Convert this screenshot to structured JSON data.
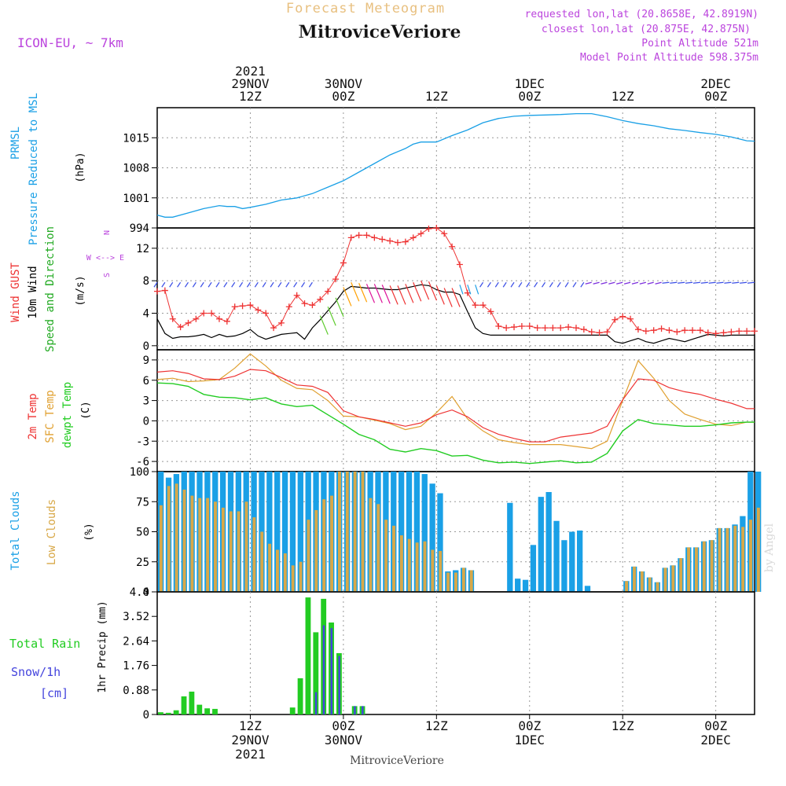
{
  "header": {
    "product": "Forecast Meteogram",
    "location": "MitroviceVeriore",
    "model": "ICON-EU, ~ 7km",
    "requested": "requested lon,lat (20.8658E, 42.8919N)",
    "closest": "closest lon,lat (20.875E, 42.875N)",
    "point_altitude": "Point Altitude 521m",
    "model_altitude": "Model Point Altitude 598.375m",
    "footer_location": "MitroviceVeriore",
    "watermark": "by Angel"
  },
  "time_axis": {
    "top_labels": [
      {
        "hour": 12,
        "lines": [
          "2021",
          "29NOV",
          "12Z"
        ]
      },
      {
        "hour": 24,
        "lines": [
          "30NOV",
          "00Z"
        ]
      },
      {
        "hour": 36,
        "lines": [
          "12Z"
        ]
      },
      {
        "hour": 48,
        "lines": [
          "1DEC",
          "00Z"
        ]
      },
      {
        "hour": 60,
        "lines": [
          "12Z"
        ]
      },
      {
        "hour": 72,
        "lines": [
          "2DEC",
          "00Z"
        ]
      }
    ],
    "bottom_labels": [
      {
        "hour": 12,
        "lines": [
          "12Z",
          "29NOV",
          "2021"
        ]
      },
      {
        "hour": 24,
        "lines": [
          "00Z",
          "30NOV"
        ]
      },
      {
        "hour": 36,
        "lines": [
          "12Z"
        ]
      },
      {
        "hour": 48,
        "lines": [
          "00Z",
          "1DEC"
        ]
      },
      {
        "hour": 60,
        "lines": [
          "12Z"
        ]
      },
      {
        "hour": 72,
        "lines": [
          "00Z",
          "2DEC"
        ]
      }
    ],
    "range_hours": [
      0,
      77
    ]
  },
  "colors": {
    "pressure": "#1aa0e6",
    "gust": "#ee3333",
    "wind": "#000000",
    "temp": "#ee3333",
    "sfc_temp": "#e0a030",
    "dewpt": "#22cc22",
    "total_clouds": "#1aa0e6",
    "low_clouds": "#d8a848",
    "rain": "#22cc22",
    "snow": "#4444dd",
    "title": "#e8c080",
    "info": "#bb44dd"
  },
  "panels": {
    "pressure": {
      "label_lines": [
        "PRMSL",
        "Pressure Reduced to MSL"
      ],
      "unit": "(hPa)",
      "ticks": [
        "994",
        "1001",
        "1008",
        "1015"
      ]
    },
    "wind": {
      "label_lines": [
        "Wind GUST",
        "10m Wind",
        "Speed and Direction"
      ],
      "unit": "(m/s)",
      "ticks": [
        "0",
        "4",
        "8",
        "12"
      ],
      "compass": [
        "N",
        "W <--> E",
        "S"
      ]
    },
    "temperature": {
      "label_lines": [
        "2m Temp",
        "SFC Temp",
        "dewpt Temp"
      ],
      "unit": "(C)",
      "ticks": [
        "-6",
        "-3",
        "0",
        "3",
        "6",
        "9"
      ]
    },
    "clouds": {
      "label_lines": [
        "Total Clouds",
        "Low Clouds"
      ],
      "unit": "(%)",
      "ticks": [
        "0",
        "25",
        "50",
        "75",
        "100"
      ]
    },
    "precip": {
      "label_lines": [
        "Total  Rain",
        "Snow/1h",
        "[cm]"
      ],
      "unit": "1hr Precip (mm)",
      "ticks": [
        "0",
        "0.88",
        "1.76",
        "2.64",
        "3.52",
        "4.4"
      ]
    }
  },
  "chart_data": [
    {
      "type": "line",
      "title": "PRMSL Pressure Reduced to MSL",
      "ylabel": "(hPa)",
      "ylim": [
        994,
        1022
      ],
      "x": [
        0,
        1,
        2,
        4,
        6,
        8,
        9,
        10,
        11,
        12,
        14,
        16,
        18,
        20,
        22,
        24,
        26,
        28,
        30,
        32,
        33,
        34,
        35,
        36,
        38,
        40,
        42,
        44,
        46,
        48,
        50,
        52,
        54,
        56,
        58,
        60,
        62,
        64,
        66,
        68,
        70,
        72,
        74,
        76,
        77
      ],
      "series": [
        {
          "name": "PRMSL",
          "values": [
            997,
            996.5,
            996.5,
            997.5,
            998.5,
            999.2,
            999,
            999,
            998.5,
            998.8,
            999.5,
            1000.5,
            1001,
            1002,
            1003.5,
            1005,
            1007,
            1009,
            1011,
            1012.5,
            1013.5,
            1014,
            1014,
            1014,
            1015.5,
            1016.8,
            1018.5,
            1019.5,
            1020,
            1020.2,
            1020.3,
            1020.4,
            1020.6,
            1020.6,
            1019.9,
            1019,
            1018.3,
            1017.8,
            1017.1,
            1016.7,
            1016.2,
            1015.8,
            1015.2,
            1014.3,
            1014.2
          ]
        }
      ]
    },
    {
      "type": "line",
      "title": "Wind GUST / 10m Wind Speed and Direction",
      "ylabel": "(m/s)",
      "ylim": [
        -0.5,
        14.5
      ],
      "x": [
        0,
        1,
        2,
        3,
        4,
        5,
        6,
        7,
        8,
        9,
        10,
        11,
        12,
        13,
        14,
        15,
        16,
        17,
        18,
        19,
        20,
        21,
        22,
        23,
        24,
        25,
        26,
        27,
        28,
        29,
        30,
        31,
        32,
        33,
        34,
        35,
        36,
        37,
        38,
        39,
        40,
        41,
        42,
        43,
        44,
        45,
        46,
        47,
        48,
        49,
        50,
        51,
        52,
        53,
        54,
        55,
        56,
        57,
        58,
        59,
        60,
        61,
        62,
        63,
        64,
        65,
        66,
        67,
        68,
        69,
        70,
        71,
        72,
        73,
        74,
        75,
        76,
        77
      ],
      "series": [
        {
          "name": "Wind GUST",
          "values": [
            6.7,
            6.8,
            3.3,
            2.3,
            2.8,
            3.3,
            4.0,
            4.0,
            3.3,
            3.0,
            4.8,
            4.9,
            5.0,
            4.4,
            4.0,
            2.2,
            2.8,
            4.8,
            6.2,
            5.2,
            5.0,
            5.7,
            6.7,
            8.2,
            10.2,
            13.3,
            13.6,
            13.6,
            13.3,
            13.1,
            12.9,
            12.7,
            12.8,
            13.3,
            13.8,
            14.4,
            14.5,
            13.8,
            12.2,
            10.0,
            6.5,
            5.0,
            5.0,
            4.2,
            2.4,
            2.2,
            2.3,
            2.4,
            2.4,
            2.2,
            2.2,
            2.2,
            2.2,
            2.3,
            2.2,
            2.0,
            1.7,
            1.6,
            1.7,
            3.2,
            3.6,
            3.3,
            2.0,
            1.8,
            1.9,
            2.1,
            1.9,
            1.7,
            1.9,
            1.9,
            1.9,
            1.6,
            1.5,
            1.6,
            1.7,
            1.8,
            1.8,
            1.8
          ]
        },
        {
          "name": "10m Wind",
          "values": [
            3.3,
            1.5,
            0.9,
            1.1,
            1.1,
            1.2,
            1.4,
            1.0,
            1.4,
            1.1,
            1.2,
            1.5,
            2.0,
            1.2,
            0.8,
            1.1,
            1.4,
            1.5,
            1.6,
            0.8,
            2.2,
            3.2,
            4.3,
            5.4,
            6.7,
            7.3,
            7.2,
            7.1,
            7.1,
            7.0,
            6.9,
            6.9,
            7.1,
            7.3,
            7.5,
            7.4,
            6.9,
            6.6,
            6.6,
            6.3,
            4.2,
            2.2,
            1.5,
            1.3,
            1.3,
            1.3,
            1.3,
            1.3,
            1.3,
            1.3,
            1.3,
            1.3,
            1.3,
            1.3,
            1.3,
            1.3,
            1.3,
            1.3,
            1.3,
            0.5,
            0.3,
            0.6,
            0.9,
            0.5,
            0.3,
            0.6,
            0.9,
            0.7,
            0.5,
            0.8,
            1.1,
            1.4,
            1.3,
            1.2,
            1.3,
            1.3,
            1.3,
            1.3
          ]
        }
      ]
    },
    {
      "type": "line",
      "title": "2m Temp / SFC Temp / dewpt Temp",
      "ylabel": "(C)",
      "ylim": [
        -7.5,
        10.5
      ],
      "x": [
        0,
        2,
        4,
        6,
        8,
        10,
        12,
        14,
        16,
        18,
        20,
        22,
        24,
        26,
        28,
        30,
        32,
        34,
        36,
        38,
        40,
        42,
        44,
        46,
        48,
        50,
        52,
        54,
        56,
        58,
        60,
        62,
        64,
        66,
        68,
        70,
        72,
        74,
        76,
        77
      ],
      "series": [
        {
          "name": "2m Temp",
          "values": [
            7.2,
            7.4,
            7.0,
            6.2,
            6.1,
            6.6,
            7.6,
            7.4,
            6.4,
            5.3,
            5.1,
            4.2,
            1.5,
            0.6,
            0.2,
            -0.3,
            -0.8,
            -0.3,
            0.9,
            1.6,
            0.6,
            -1.0,
            -2.0,
            -2.6,
            -3.1,
            -3.1,
            -2.4,
            -2.1,
            -1.8,
            -0.8,
            3.1,
            6.2,
            6.0,
            4.9,
            4.3,
            3.9,
            3.2,
            2.6,
            1.8,
            1.8
          ]
        },
        {
          "name": "SFC Temp",
          "values": [
            6.1,
            6.3,
            5.8,
            5.9,
            6.1,
            7.8,
            9.9,
            8.1,
            6.0,
            4.8,
            4.6,
            3.0,
            0.7,
            0.6,
            0.1,
            -0.4,
            -1.3,
            -0.8,
            1.2,
            3.6,
            0.3,
            -1.5,
            -2.8,
            -3.2,
            -3.5,
            -3.5,
            -3.5,
            -3.8,
            -4.1,
            -3.0,
            3.0,
            8.9,
            6.3,
            3.0,
            1.0,
            0.2,
            -0.5,
            -0.7,
            -0.2,
            -0.2
          ]
        },
        {
          "name": "dewpt Temp",
          "values": [
            5.6,
            5.5,
            5.1,
            3.9,
            3.5,
            3.4,
            3.1,
            3.4,
            2.5,
            2.1,
            2.3,
            0.9,
            -0.5,
            -2.0,
            -2.8,
            -4.2,
            -4.6,
            -4.1,
            -4.4,
            -5.2,
            -5.1,
            -5.8,
            -6.2,
            -6.1,
            -6.3,
            -6.1,
            -5.9,
            -6.2,
            -6.1,
            -4.8,
            -1.5,
            0.2,
            -0.4,
            -0.6,
            -0.8,
            -0.8,
            -0.6,
            -0.3,
            -0.2,
            -0.2
          ]
        }
      ]
    },
    {
      "type": "bar",
      "title": "Total Clouds / Low Clouds",
      "ylabel": "(%)",
      "ylim": [
        0,
        100
      ],
      "x": [
        0,
        1,
        2,
        3,
        4,
        5,
        6,
        7,
        8,
        9,
        10,
        11,
        12,
        13,
        14,
        15,
        16,
        17,
        18,
        19,
        20,
        21,
        22,
        23,
        24,
        25,
        26,
        27,
        28,
        29,
        30,
        31,
        32,
        33,
        34,
        35,
        36,
        37,
        38,
        39,
        40,
        41,
        42,
        43,
        44,
        45,
        46,
        47,
        48,
        49,
        50,
        51,
        52,
        53,
        54,
        55,
        56,
        57,
        58,
        59,
        60,
        61,
        62,
        63,
        64,
        65,
        66,
        67,
        68,
        69,
        70,
        71,
        72,
        73,
        74,
        75,
        76,
        77
      ],
      "series": [
        {
          "name": "Total Clouds",
          "values": [
            100,
            95,
            98,
            100,
            100,
            100,
            100,
            100,
            100,
            100,
            100,
            100,
            100,
            100,
            100,
            100,
            100,
            100,
            100,
            100,
            100,
            100,
            100,
            100,
            100,
            100,
            100,
            100,
            100,
            100,
            100,
            100,
            100,
            100,
            98,
            90,
            82,
            17,
            18,
            20,
            18,
            0,
            0,
            0,
            0,
            74,
            11,
            10,
            39,
            79,
            83,
            59,
            43,
            50,
            51,
            5,
            0,
            0,
            0,
            0,
            9,
            21,
            17,
            12,
            8,
            20,
            22,
            28,
            37,
            37,
            42,
            43,
            53,
            53,
            56,
            63,
            100,
            100
          ]
        },
        {
          "name": "Low Clouds",
          "values": [
            72,
            88,
            90,
            85,
            80,
            78,
            78,
            75,
            70,
            67,
            67,
            75,
            62,
            50,
            40,
            35,
            32,
            22,
            25,
            60,
            68,
            77,
            80,
            100,
            100,
            100,
            100,
            78,
            73,
            60,
            55,
            47,
            44,
            41,
            42,
            35,
            34,
            16,
            16,
            20,
            18,
            0,
            0,
            0,
            0,
            0,
            0,
            0,
            0,
            0,
            0,
            0,
            0,
            0,
            0,
            0,
            0,
            0,
            0,
            0,
            9,
            21,
            17,
            12,
            8,
            20,
            22,
            28,
            37,
            37,
            42,
            43,
            53,
            53,
            55,
            54,
            60,
            70
          ]
        }
      ]
    },
    {
      "type": "bar",
      "title": "Total Rain / Snow/1h",
      "ylabel": "1hr Precip (mm)",
      "ylim": [
        0,
        4.4
      ],
      "x": [
        0,
        1,
        2,
        3,
        4,
        5,
        6,
        7,
        8,
        9,
        10,
        11,
        12,
        13,
        14,
        15,
        16,
        17,
        18,
        19,
        20,
        21,
        22,
        23,
        24,
        25,
        26,
        27,
        28,
        29,
        30,
        31,
        32,
        33,
        34,
        35,
        36,
        37,
        38,
        39,
        40,
        41,
        42,
        43,
        44,
        45,
        46,
        47,
        48,
        49,
        50,
        51,
        52,
        53,
        54,
        55,
        56,
        57,
        58,
        59,
        60,
        61,
        62,
        63,
        64,
        65,
        66,
        67,
        68,
        69,
        70,
        71,
        72,
        73,
        74,
        75,
        76,
        77
      ],
      "series": [
        {
          "name": "Total Rain",
          "values": [
            0.08,
            0.06,
            0.15,
            0.65,
            0.82,
            0.35,
            0.22,
            0.2,
            0,
            0,
            0,
            0,
            0,
            0,
            0,
            0,
            0,
            0.25,
            1.3,
            4.2,
            2.95,
            4.15,
            3.3,
            2.2,
            0,
            0.3,
            0.3,
            0,
            0,
            0,
            0,
            0,
            0,
            0,
            0,
            0,
            0,
            0,
            0,
            0,
            0,
            0,
            0,
            0,
            0,
            0,
            0,
            0,
            0,
            0,
            0,
            0,
            0,
            0,
            0,
            0,
            0,
            0,
            0,
            0,
            0,
            0,
            0,
            0,
            0,
            0,
            0,
            0,
            0,
            0,
            0,
            0,
            0,
            0,
            0,
            0,
            0,
            0
          ]
        },
        {
          "name": "Snow/1h",
          "values": [
            0,
            0,
            0,
            0,
            0,
            0,
            0,
            0,
            0,
            0,
            0,
            0,
            0,
            0,
            0,
            0,
            0,
            0,
            0,
            0,
            0.8,
            3.2,
            3.1,
            2.1,
            0,
            0.3,
            0.3,
            0,
            0,
            0,
            0,
            0,
            0,
            0,
            0,
            0,
            0,
            0,
            0,
            0,
            0,
            0,
            0,
            0,
            0,
            0,
            0,
            0,
            0,
            0,
            0,
            0,
            0,
            0,
            0,
            0,
            0,
            0,
            0,
            0,
            0,
            0,
            0,
            0,
            0,
            0,
            0,
            0,
            0,
            0,
            0,
            0,
            0,
            0,
            0,
            0,
            0,
            0
          ]
        }
      ]
    }
  ]
}
